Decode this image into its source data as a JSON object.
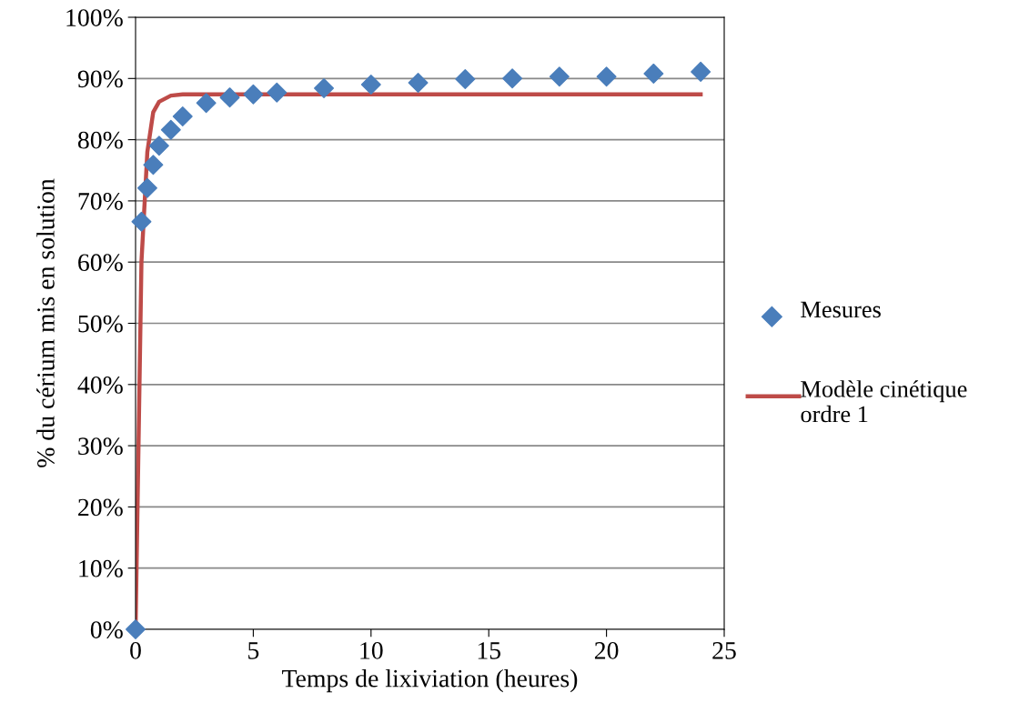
{
  "chart_data": {
    "type": "scatter",
    "xlabel": "Temps de lixiviation (heures)",
    "ylabel": "% du cérium mis en solution",
    "xlim": [
      0,
      25
    ],
    "xticks": [
      0,
      5,
      10,
      15,
      20,
      25
    ],
    "ylim": [
      0,
      100
    ],
    "yticks": [
      {
        "value": 0,
        "label": "0%"
      },
      {
        "value": 10,
        "label": "10%"
      },
      {
        "value": 20,
        "label": "20%"
      },
      {
        "value": 30,
        "label": "30%"
      },
      {
        "value": 40,
        "label": "40%"
      },
      {
        "value": 50,
        "label": "50%"
      },
      {
        "value": 60,
        "label": "60%"
      },
      {
        "value": 70,
        "label": "70%"
      },
      {
        "value": 80,
        "label": "80%"
      },
      {
        "value": 90,
        "label": "90%"
      },
      {
        "value": 100,
        "label": "100%"
      }
    ],
    "grid": "y",
    "legend": "right",
    "series": [
      {
        "name": "Mesures",
        "marker": "diamond",
        "color": "#4a7ebb",
        "x": [
          0,
          0.25,
          0.5,
          0.75,
          1,
          1.5,
          2,
          3,
          4,
          5,
          6,
          8,
          10,
          12,
          14,
          16,
          18,
          20,
          22,
          24
        ],
        "values": [
          0,
          66.6,
          72.1,
          75.9,
          79.0,
          81.6,
          83.8,
          86.0,
          86.9,
          87.4,
          87.7,
          88.4,
          89.0,
          89.3,
          89.9,
          90.0,
          90.3,
          90.3,
          90.8,
          91.1
        ]
      },
      {
        "name": "Modèle cinétique ordre 1",
        "type": "line",
        "marker": "none",
        "line_style": "solid",
        "color": "#be4b48",
        "x": [
          0,
          0.25,
          0.5,
          0.75,
          1,
          1.5,
          2,
          24
        ],
        "values": [
          0,
          60,
          78,
          84.5,
          86.2,
          87.2,
          87.4,
          87.4
        ]
      }
    ]
  }
}
